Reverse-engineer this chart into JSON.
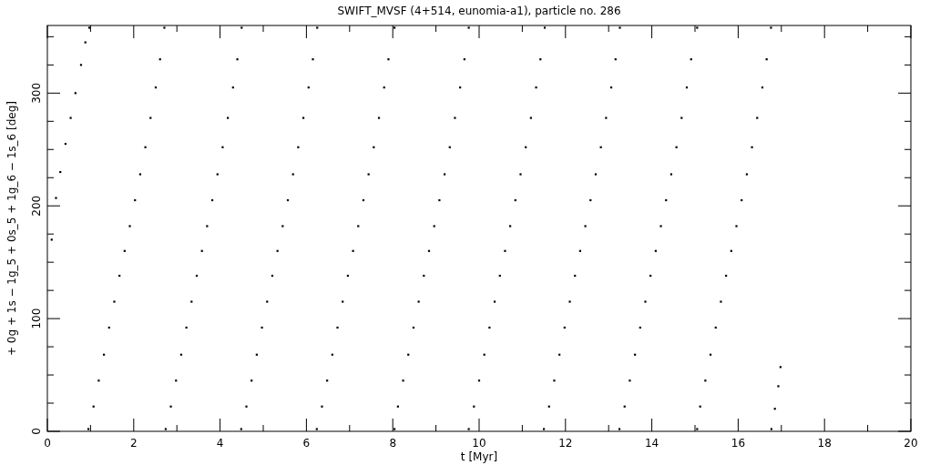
{
  "chart_data": {
    "type": "scatter",
    "title": "SWIFT_MVSF (4+514, eunomia-a1), particle no. 286",
    "xlabel": "t [Myr]",
    "ylabel": "+ 0g + 1s − 1g_5 + 0s_5 + 1g_6 − 1s_6 [deg]",
    "xlim": [
      0,
      20
    ],
    "ylim": [
      0,
      360
    ],
    "marker": "square",
    "xticks": [
      0,
      {
        "value": 1,
        "label": null
      },
      2,
      {
        "value": 3,
        "label": null
      },
      4,
      {
        "value": 5,
        "label": null
      },
      6,
      {
        "value": 7,
        "label": null
      },
      8,
      {
        "value": 9,
        "label": null
      },
      10,
      {
        "value": 11,
        "label": null
      },
      12,
      {
        "value": 13,
        "label": null
      },
      14,
      {
        "value": 15,
        "label": null
      },
      16,
      {
        "value": 17,
        "label": null
      },
      18,
      {
        "value": 19,
        "label": null
      },
      20
    ],
    "yticks": [
      0,
      {
        "value": 25,
        "label": null
      },
      {
        "value": 50,
        "label": null
      },
      {
        "value": 75,
        "label": null
      },
      100,
      {
        "value": 125,
        "label": null
      },
      {
        "value": 150,
        "label": null
      },
      {
        "value": 175,
        "label": null
      },
      200,
      {
        "value": 225,
        "label": null
      },
      {
        "value": 250,
        "label": null
      },
      {
        "value": 275,
        "label": null
      },
      300,
      {
        "value": 325,
        "label": null
      },
      {
        "value": 350,
        "label": null
      }
    ],
    "series": [
      {
        "color": "#000000",
        "x": [
          0.1,
          0.2,
          0.3,
          0.42,
          0.54,
          0.65,
          0.78,
          0.88,
          0.97
        ],
        "values": [
          170,
          207,
          230,
          255,
          278,
          300,
          325,
          345,
          358
        ]
      },
      {
        "color": "#000000",
        "x": [
          0.95,
          1.07,
          1.19,
          1.31,
          1.43,
          1.55,
          1.67,
          1.79,
          1.91,
          2.03,
          2.15,
          2.27,
          2.39,
          2.51,
          2.61,
          2.71
        ],
        "values": [
          2,
          22,
          45,
          68,
          92,
          115,
          138,
          160,
          182,
          205,
          228,
          252,
          278,
          305,
          330,
          358
        ]
      },
      {
        "color": "#000000",
        "x": [
          2.74,
          2.86,
          2.98,
          3.1,
          3.22,
          3.34,
          3.46,
          3.58,
          3.7,
          3.82,
          3.94,
          4.06,
          4.18,
          4.3,
          4.4,
          4.5
        ],
        "values": [
          2,
          22,
          45,
          68,
          92,
          115,
          138,
          160,
          182,
          205,
          228,
          252,
          278,
          305,
          330,
          358
        ]
      },
      {
        "color": "#000000",
        "x": [
          4.49,
          4.61,
          4.73,
          4.85,
          4.97,
          5.09,
          5.21,
          5.33,
          5.45,
          5.57,
          5.69,
          5.81,
          5.93,
          6.05,
          6.15,
          6.25
        ],
        "values": [
          2,
          22,
          45,
          68,
          92,
          115,
          138,
          160,
          182,
          205,
          228,
          252,
          278,
          305,
          330,
          358
        ]
      },
      {
        "color": "#000000",
        "x": [
          6.24,
          6.36,
          6.48,
          6.6,
          6.72,
          6.84,
          6.96,
          7.08,
          7.2,
          7.32,
          7.44,
          7.56,
          7.68,
          7.8,
          7.9,
          8.04
        ],
        "values": [
          2,
          22,
          45,
          68,
          92,
          115,
          138,
          160,
          182,
          205,
          228,
          252,
          278,
          305,
          330,
          358
        ]
      },
      {
        "color": "#000000",
        "x": [
          8.04,
          8.12,
          8.24,
          8.36,
          8.48,
          8.6,
          8.72,
          8.84,
          8.96,
          9.08,
          9.2,
          9.32,
          9.44,
          9.56,
          9.66,
          9.76
        ],
        "values": [
          2,
          22,
          45,
          68,
          92,
          115,
          138,
          160,
          182,
          205,
          228,
          252,
          278,
          305,
          330,
          358
        ]
      },
      {
        "color": "#000000",
        "x": [
          9.76,
          9.88,
          10.0,
          10.12,
          10.24,
          10.36,
          10.48,
          10.6,
          10.72,
          10.84,
          10.96,
          11.08,
          11.2,
          11.32,
          11.42,
          11.52
        ],
        "values": [
          2,
          22,
          45,
          68,
          92,
          115,
          138,
          160,
          182,
          205,
          228,
          252,
          278,
          305,
          330,
          358
        ]
      },
      {
        "color": "#000000",
        "x": [
          11.5,
          11.62,
          11.74,
          11.86,
          11.98,
          12.1,
          12.22,
          12.34,
          12.46,
          12.58,
          12.7,
          12.82,
          12.94,
          13.06,
          13.16,
          13.26
        ],
        "values": [
          2,
          22,
          45,
          68,
          92,
          115,
          138,
          160,
          182,
          205,
          228,
          252,
          278,
          305,
          330,
          358
        ]
      },
      {
        "color": "#000000",
        "x": [
          13.25,
          13.37,
          13.49,
          13.61,
          13.73,
          13.85,
          13.97,
          14.09,
          14.21,
          14.33,
          14.45,
          14.57,
          14.69,
          14.81,
          14.91,
          15.05
        ],
        "values": [
          2,
          22,
          45,
          68,
          92,
          115,
          138,
          160,
          182,
          205,
          228,
          252,
          278,
          305,
          330,
          358
        ]
      },
      {
        "color": "#000000",
        "x": [
          15.05,
          15.12,
          15.24,
          15.36,
          15.48,
          15.6,
          15.72,
          15.84,
          15.96,
          16.08,
          16.2,
          16.32,
          16.44,
          16.56,
          16.66,
          16.76
        ],
        "values": [
          2,
          22,
          45,
          68,
          92,
          115,
          138,
          160,
          182,
          205,
          228,
          252,
          278,
          305,
          330,
          358
        ]
      },
      {
        "color": "#000000",
        "x": [
          16.77,
          16.85,
          16.93,
          16.98
        ],
        "values": [
          2,
          20,
          40,
          57
        ]
      }
    ]
  }
}
